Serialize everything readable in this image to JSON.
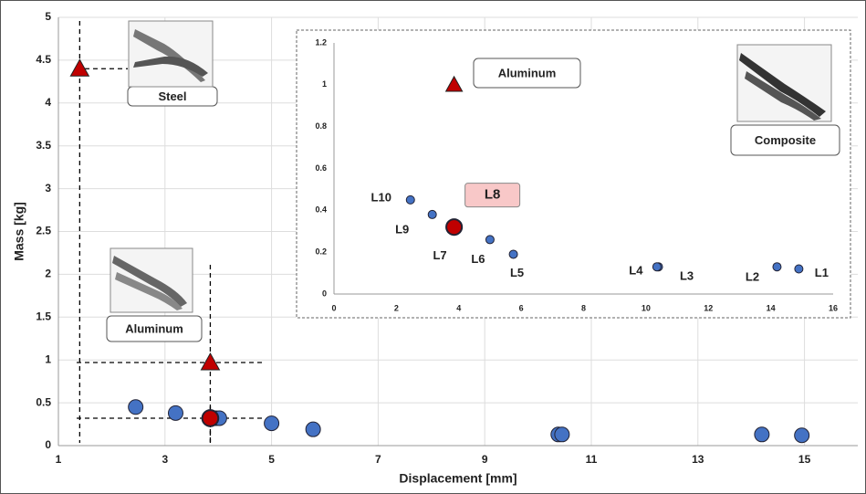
{
  "chart_data": [
    {
      "type": "scatter",
      "xlabel": "Displacement [mm]",
      "ylabel": "Mass [kg]",
      "xlim": [
        1,
        16
      ],
      "xticks": [
        1,
        3,
        5,
        7,
        9,
        11,
        13,
        15
      ],
      "ylim": [
        0,
        5
      ],
      "yticks": [
        0,
        0.5,
        1,
        1.5,
        2,
        2.5,
        3,
        3.5,
        4,
        4.5,
        5
      ],
      "grid": true,
      "series": [
        {
          "color": "#4472c4",
          "marker": "circle",
          "x": [
            2.45,
            3.2,
            3.95,
            4.02,
            5,
            5.78,
            10.38,
            10.45,
            14.2,
            14.95
          ],
          "y": [
            0.45,
            0.38,
            0.32,
            0.32,
            0.26,
            0.19,
            0.13,
            0.13,
            0.13,
            0.12
          ]
        },
        {
          "color": "#c00000",
          "marker": "circle",
          "x": [
            3.85
          ],
          "y": [
            0.32
          ]
        },
        {
          "color": "#c00000",
          "marker": "triangle",
          "x": [
            1.4,
            3.85
          ],
          "y": [
            4.4,
            0.97
          ]
        }
      ],
      "annotations": [
        "Steel",
        "Aluminum"
      ]
    },
    {
      "type": "scatter",
      "xlim": [
        0,
        16
      ],
      "xticks": [
        0,
        2,
        4,
        6,
        8,
        10,
        12,
        14,
        16
      ],
      "ylim": [
        0,
        1.2
      ],
      "yticks": [
        0,
        0.2,
        0.4,
        0.6,
        0.8,
        1,
        1.2
      ],
      "grid": false,
      "series": [
        {
          "color": "#4472c4",
          "marker": "circle",
          "x": [
            14.9,
            14.2,
            10.4,
            10.35,
            5.75,
            5,
            3.95,
            3.15,
            2.45
          ],
          "y": [
            0.12,
            0.13,
            0.13,
            0.13,
            0.19,
            0.26,
            0.32,
            0.38,
            0.45
          ],
          "labels": [
            "L1",
            "L2",
            "L3",
            "L4",
            "L5",
            "L6",
            "L7",
            "L9",
            "L10"
          ]
        },
        {
          "color": "#c00000",
          "marker": "circle",
          "x": [
            3.85
          ],
          "y": [
            0.32
          ],
          "labels": [
            "L8"
          ]
        },
        {
          "color": "#c00000",
          "marker": "triangle",
          "x": [
            3.85
          ],
          "y": [
            1
          ]
        }
      ],
      "annotations": [
        "Aluminum",
        "Composite"
      ]
    }
  ]
}
